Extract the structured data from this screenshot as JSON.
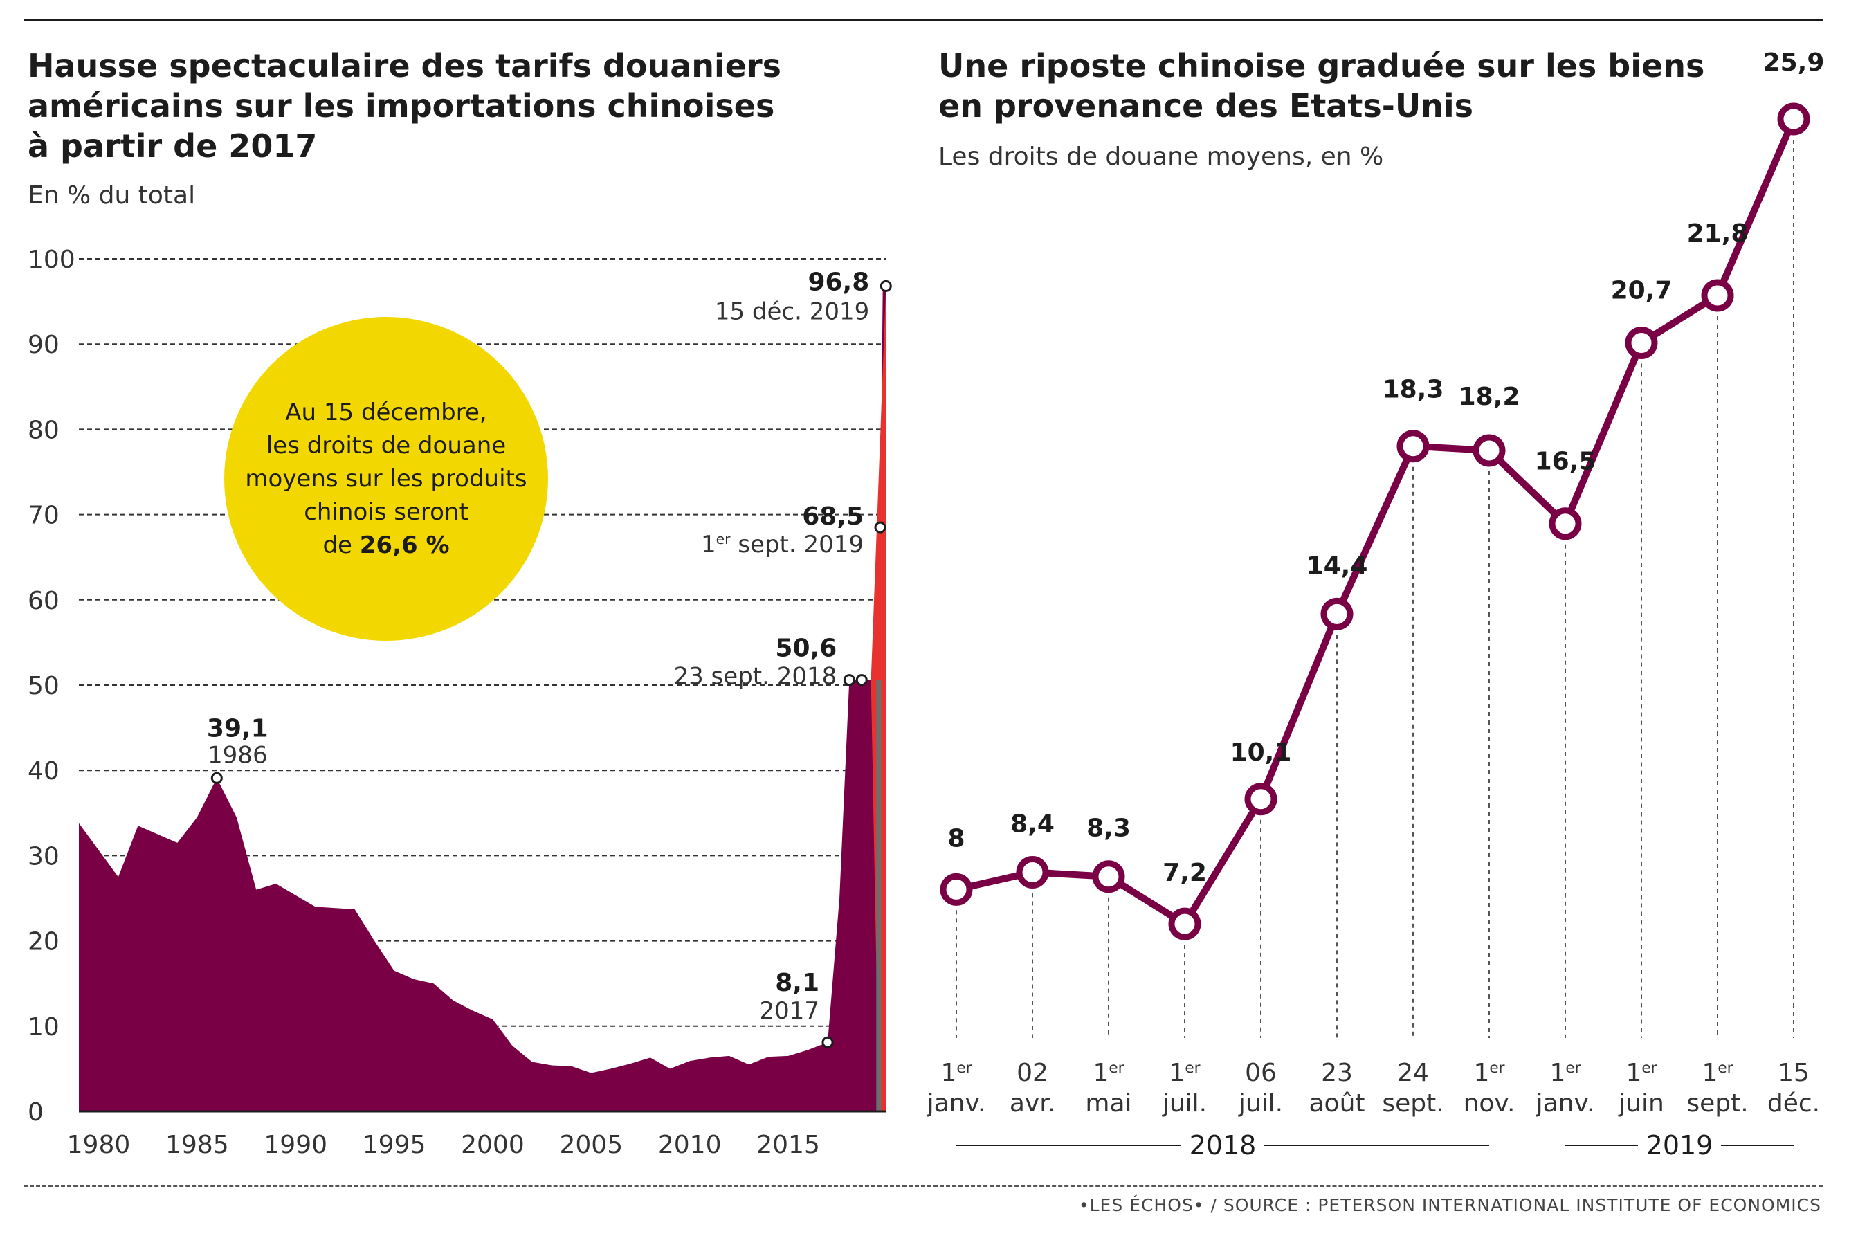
{
  "left": {
    "title_lines": [
      "Hausse spectaculaire des tarifs douaniers",
      "américains sur les importations chinoises",
      "à partir de 2017"
    ],
    "subtitle": "En % du total",
    "callout": {
      "lines": [
        "Au 15 décembre,",
        "les droits de douane",
        "moyens sur les produits",
        "chinois seront"
      ],
      "last_prefix": "de ",
      "last_value": "26,6 %"
    }
  },
  "right": {
    "title_lines": [
      "Une riposte chinoise graduée sur les biens",
      "en provenance des Etats-Unis"
    ],
    "subtitle": "Les droits de douane moyens, en %"
  },
  "source": "•LES ÉCHOS• / SOURCE : PETERSON INTERNATIONAL INSTITUTE OF ECONOMICS",
  "colors": {
    "area": "#7a0045",
    "line": "#7a0045",
    "spike": "#e8322e",
    "callout": "#f2d800",
    "grid": "#333333"
  },
  "chart_data": [
    {
      "type": "area",
      "title": "Hausse spectaculaire des tarifs douaniers américains sur les importations chinoises à partir de 2017",
      "subtitle": "En % du total",
      "xlim": [
        1979,
        2019.95
      ],
      "ylim": [
        0,
        100
      ],
      "y_ticks": [
        0,
        10,
        20,
        30,
        40,
        50,
        60,
        70,
        80,
        90,
        100
      ],
      "x_ticks": [
        1980,
        1985,
        1990,
        1995,
        2000,
        2005,
        2010,
        2015
      ],
      "grid": "dashed horizontal",
      "series": [
        {
          "x": [
            1979,
            1981,
            1982,
            1984,
            1985,
            1986,
            1987,
            1988,
            1989,
            1991,
            1993,
            1994,
            1995,
            1996,
            1997,
            1998,
            1999,
            2000,
            2001,
            2002,
            2003,
            2004,
            2005,
            2006,
            2007,
            2008,
            2009,
            2010,
            2011,
            2012,
            2013,
            2014,
            2015,
            2016,
            2017,
            2017.6,
            2018.1,
            2018.73,
            2019.2,
            2019.67,
            2019.8,
            2019.96
          ],
          "y": [
            33.8,
            27.5,
            33.5,
            31.5,
            34.5,
            39.1,
            34.5,
            26,
            26.7,
            24,
            23.7,
            20,
            16.5,
            15.5,
            15,
            13,
            11.8,
            10.8,
            7.7,
            5.8,
            5.4,
            5.3,
            4.5,
            5,
            5.6,
            6.3,
            5,
            5.9,
            6.3,
            6.5,
            5.5,
            6.4,
            6.5,
            7.2,
            8.1,
            25,
            50.6,
            50.6,
            50.6,
            68.5,
            96.8,
            96.8
          ]
        }
      ],
      "annotations": [
        {
          "x": 1986,
          "y": 39.1,
          "value": "39,1",
          "label": "1986"
        },
        {
          "x": 2017,
          "y": 8.1,
          "value": "8,1",
          "label": "2017"
        },
        {
          "x": 2018.73,
          "y": 50.6,
          "value": "50,6",
          "label": "23 sept. 2018"
        },
        {
          "x": 2019.67,
          "y": 68.5,
          "value": "68,5",
          "label": "1er sept. 2019"
        },
        {
          "x": 2019.96,
          "y": 96.8,
          "value": "96,8",
          "label": "15 déc. 2019"
        }
      ],
      "extra_markers": [
        {
          "x": 2018.1,
          "y": 50.6
        }
      ]
    },
    {
      "type": "line",
      "title": "Une riposte chinoise graduée sur les biens en provenance des Etats-Unis",
      "subtitle": "Les droits de douane moyens, en %",
      "x_labels": [
        {
          "top": "1er",
          "bottom": "janv."
        },
        {
          "top": "02",
          "bottom": "avr."
        },
        {
          "top": "1er",
          "bottom": "mai"
        },
        {
          "top": "1er",
          "bottom": "juil."
        },
        {
          "top": "06",
          "bottom": "juil."
        },
        {
          "top": "23",
          "bottom": "août"
        },
        {
          "top": "24",
          "bottom": "sept."
        },
        {
          "top": "1er",
          "bottom": "nov."
        },
        {
          "top": "1er",
          "bottom": "janv."
        },
        {
          "top": "1er",
          "bottom": "juin"
        },
        {
          "top": "1er",
          "bottom": "sept."
        },
        {
          "top": "15",
          "bottom": "déc."
        }
      ],
      "values": [
        8,
        8.4,
        8.3,
        7.2,
        10.1,
        14.4,
        18.3,
        18.2,
        16.5,
        20.7,
        21.8,
        25.9
      ],
      "value_labels": [
        "8",
        "8,4",
        "8,3",
        "7,2",
        "10,1",
        "14,4",
        "18,3",
        "18,2",
        "16,5",
        "20,7",
        "21,8",
        "25,9"
      ],
      "years": [
        {
          "label": "2018",
          "from": 0,
          "to": 7
        },
        {
          "label": "2019",
          "from": 8,
          "to": 11
        }
      ],
      "ylim": [
        0,
        30
      ]
    }
  ]
}
